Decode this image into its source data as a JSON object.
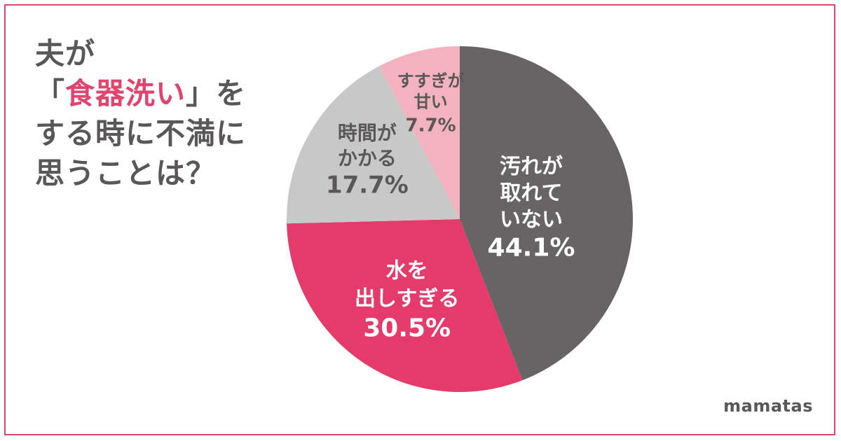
{
  "title": {
    "line1": "夫が",
    "line2_open": "「",
    "line2_accent": "食器洗い",
    "line2_close": "」を",
    "line3": "する時に不満に",
    "line4": "思うことは？"
  },
  "brand": "mamatas",
  "colors": {
    "accent": "#e0456f",
    "frame": "#e0456f",
    "text": "#595757"
  },
  "chart_data": {
    "type": "pie",
    "title": "夫が「食器洗い」をする時に不満に思うことは？",
    "slices": [
      {
        "label": "汚れが取れていない",
        "label_lines": [
          "汚れが",
          "取れて",
          "いない"
        ],
        "value_text": "44.1%",
        "value": 44.1,
        "color": "#666464",
        "text_color": "#ffffff"
      },
      {
        "label": "水を出しすぎる",
        "label_lines": [
          "水を",
          "出しすぎる"
        ],
        "value_text": "30.5%",
        "value": 30.5,
        "color": "#e43b6b",
        "text_color": "#ffffff"
      },
      {
        "label": "時間がかかる",
        "label_lines": [
          "時間が",
          "かかる"
        ],
        "value_text": "17.7%",
        "value": 17.7,
        "color": "#c9c8c9",
        "text_color": "#595757"
      },
      {
        "label": "すすぎが甘い",
        "label_lines": [
          "すすぎが",
          "甘い"
        ],
        "value_text": "7.7%",
        "value": 7.7,
        "color": "#f2b3be",
        "text_color": "#595757"
      }
    ]
  }
}
